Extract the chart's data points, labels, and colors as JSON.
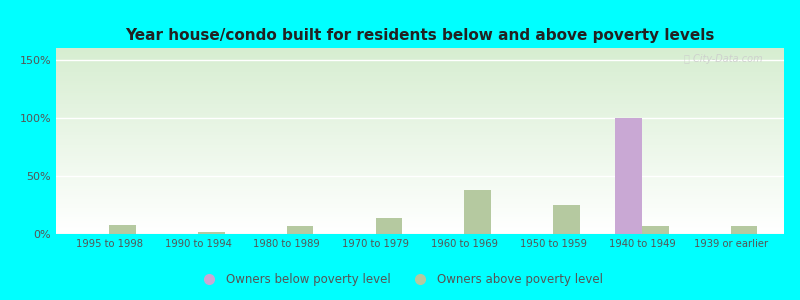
{
  "title": "Year house/condo built for residents below and above poverty levels",
  "categories": [
    "1995 to 1998",
    "1990 to 1994",
    "1980 to 1989",
    "1970 to 1979",
    "1960 to 1969",
    "1950 to 1959",
    "1940 to 1949",
    "1939 or earlier"
  ],
  "below_poverty": [
    0,
    0,
    0,
    0,
    0,
    0,
    100,
    0
  ],
  "above_poverty": [
    8,
    2,
    7,
    14,
    38,
    25,
    7,
    7
  ],
  "below_color": "#c9a8d4",
  "above_color": "#b5c9a0",
  "title_fontsize": 11,
  "ylabel_ticks": [
    "0%",
    "50%",
    "100%",
    "150%"
  ],
  "yticks": [
    0,
    50,
    100,
    150
  ],
  "ylim": [
    0,
    160
  ],
  "bar_width": 0.3,
  "legend_below": "Owners below poverty level",
  "legend_above": "Owners above poverty level",
  "bg_color": "#00ffff",
  "plot_bg_top": "#ffffff",
  "plot_bg_bottom": "#d6edd0"
}
